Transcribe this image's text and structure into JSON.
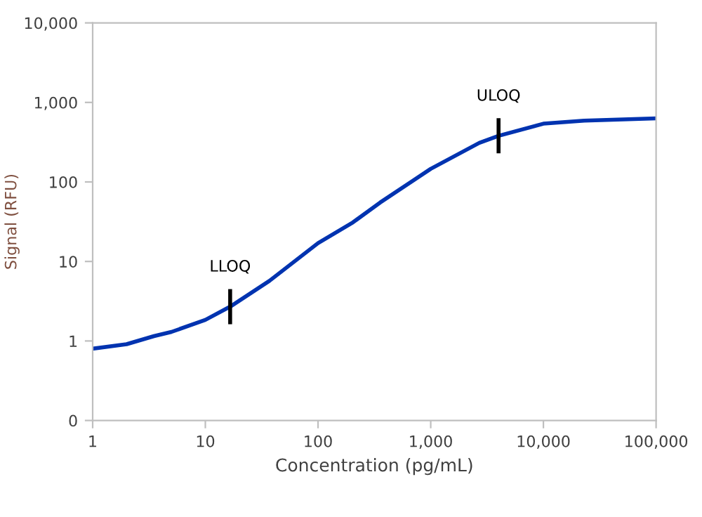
{
  "chart_data": {
    "type": "line",
    "xlabel": "Concentration (pg/mL)",
    "ylabel": "Signal (RFU)",
    "log": "xy",
    "grid": false,
    "legend": false,
    "marker": "none",
    "line_style": "solid",
    "xlim": [
      1,
      100000
    ],
    "ylim": [
      0.1,
      10000
    ],
    "xticks": [
      1,
      10,
      {
        "value": 100,
        "label": "100"
      },
      {
        "value": 1000,
        "label": "1,000"
      },
      {
        "value": 10000,
        "label": "10,000"
      },
      {
        "value": 100000,
        "label": "100,000"
      }
    ],
    "yticks": [
      {
        "value": 0.1,
        "label": "0"
      },
      1,
      10,
      100,
      {
        "value": 1000,
        "label": "1,000"
      },
      {
        "value": 10000,
        "label": "10,000"
      }
    ],
    "series": [
      {
        "color": "#0033b0",
        "x": [
          1,
          2,
          3.5,
          5,
          10,
          16.6,
          37,
          100,
          204,
          355,
          1000,
          2700,
          4000,
          10000,
          23000,
          100000
        ],
        "values": [
          0.8,
          0.91,
          1.15,
          1.3,
          1.84,
          2.7,
          5.7,
          17,
          31,
          55,
          146,
          310,
          380,
          540,
          590,
          630
        ]
      }
    ],
    "annotations": [
      {
        "text": "LLOQ",
        "x": 16.6,
        "y": 2.7
      },
      {
        "text": "ULOQ",
        "x": 4000,
        "y": 380
      }
    ]
  }
}
